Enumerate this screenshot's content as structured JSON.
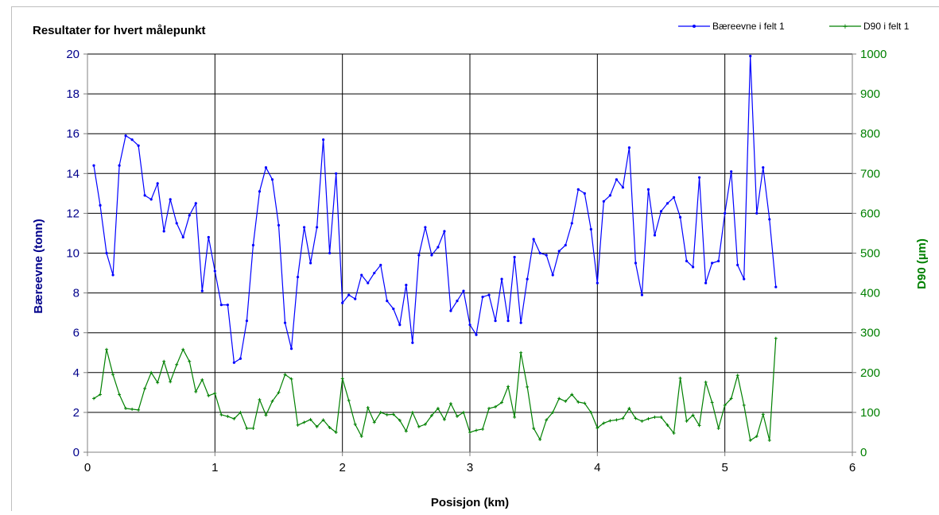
{
  "chart_data": {
    "type": "line",
    "title": "Resultater for hvert målepunkt",
    "xlabel": "Posisjon (km)",
    "ylabel_left": "Bæreevne (tonn)",
    "ylabel_right": "D90 (µm)",
    "xlim": [
      0,
      6
    ],
    "ylim_left": [
      0,
      20
    ],
    "ylim_right": [
      0,
      1000
    ],
    "x_ticks": [
      "0",
      "1",
      "2",
      "3",
      "4",
      "5",
      "6"
    ],
    "y_left_ticks": [
      "0",
      "2",
      "4",
      "6",
      "8",
      "10",
      "12",
      "14",
      "16",
      "18",
      "20"
    ],
    "y_right_ticks": [
      "0",
      "100",
      "200",
      "300",
      "400",
      "500",
      "600",
      "700",
      "800",
      "900",
      "1000"
    ],
    "grid": true,
    "legend_position": "top-right",
    "colors": {
      "series1": "#0000ff",
      "series2": "#008000",
      "left_axis": "#00008b",
      "right_axis": "#008000"
    },
    "series": [
      {
        "name": "Bæreevne i felt 1",
        "axis": "left",
        "x": [
          0.05,
          0.1,
          0.15,
          0.2,
          0.25,
          0.3,
          0.35,
          0.4,
          0.45,
          0.5,
          0.55,
          0.6,
          0.65,
          0.7,
          0.75,
          0.8,
          0.85,
          0.9,
          0.95,
          1.0,
          1.05,
          1.1,
          1.15,
          1.2,
          1.25,
          1.3,
          1.35,
          1.4,
          1.45,
          1.5,
          1.55,
          1.6,
          1.65,
          1.7,
          1.75,
          1.8,
          1.85,
          1.9,
          1.95,
          2.0,
          2.05,
          2.1,
          2.15,
          2.2,
          2.25,
          2.3,
          2.35,
          2.4,
          2.45,
          2.5,
          2.55,
          2.6,
          2.65,
          2.7,
          2.75,
          2.8,
          2.85,
          2.9,
          2.95,
          3.0,
          3.05,
          3.1,
          3.15,
          3.2,
          3.25,
          3.3,
          3.35,
          3.4,
          3.45,
          3.5,
          3.55,
          3.6,
          3.65,
          3.7,
          3.75,
          3.8,
          3.85,
          3.9,
          3.95,
          4.0,
          4.05,
          4.1,
          4.15,
          4.2,
          4.25,
          4.3,
          4.35,
          4.4,
          4.45,
          4.5,
          4.55,
          4.6,
          4.65,
          4.7,
          4.75,
          4.8,
          4.85,
          4.9,
          4.95,
          5.0,
          5.05,
          5.1,
          5.15,
          5.2,
          5.25,
          5.3,
          5.35,
          5.4
        ],
        "values": [
          14.4,
          12.4,
          10.0,
          8.9,
          14.4,
          15.9,
          15.7,
          15.4,
          12.9,
          12.7,
          13.5,
          11.1,
          12.7,
          11.5,
          10.8,
          11.9,
          12.5,
          8.1,
          10.8,
          9.1,
          7.4,
          7.4,
          4.5,
          4.7,
          6.6,
          10.4,
          13.1,
          14.3,
          13.7,
          11.4,
          6.5,
          5.2,
          8.8,
          11.3,
          9.5,
          11.3,
          15.7,
          10.0,
          14.0,
          7.5,
          7.9,
          7.7,
          8.9,
          8.5,
          9.0,
          9.4,
          7.6,
          7.2,
          6.4,
          8.4,
          5.5,
          9.9,
          11.3,
          9.9,
          10.3,
          11.1,
          7.1,
          7.6,
          8.1,
          6.4,
          5.9,
          7.8,
          7.9,
          6.6,
          8.7,
          6.6,
          9.8,
          6.5,
          8.7,
          10.7,
          10.0,
          9.9,
          8.9,
          10.1,
          10.4,
          11.5,
          13.2,
          13.0,
          11.2,
          8.5,
          12.6,
          12.9,
          13.7,
          13.3,
          15.3,
          9.5,
          7.9,
          13.2,
          10.9,
          12.1,
          12.5,
          12.8,
          11.8,
          9.6,
          9.3,
          13.8,
          8.5,
          9.5,
          9.6,
          12.0,
          14.1,
          9.4,
          8.7,
          19.9,
          12.0,
          14.3,
          11.7,
          8.3
        ]
      },
      {
        "name": "D90 i felt 1",
        "axis": "right",
        "x": [
          0.05,
          0.1,
          0.15,
          0.2,
          0.25,
          0.3,
          0.35,
          0.4,
          0.45,
          0.5,
          0.55,
          0.6,
          0.65,
          0.7,
          0.75,
          0.8,
          0.85,
          0.9,
          0.95,
          1.0,
          1.05,
          1.1,
          1.15,
          1.2,
          1.25,
          1.3,
          1.35,
          1.4,
          1.45,
          1.5,
          1.55,
          1.6,
          1.65,
          1.7,
          1.75,
          1.8,
          1.85,
          1.9,
          1.95,
          2.0,
          2.05,
          2.1,
          2.15,
          2.2,
          2.25,
          2.3,
          2.35,
          2.4,
          2.45,
          2.5,
          2.55,
          2.6,
          2.65,
          2.7,
          2.75,
          2.8,
          2.85,
          2.9,
          2.95,
          3.0,
          3.05,
          3.1,
          3.15,
          3.2,
          3.25,
          3.3,
          3.35,
          3.4,
          3.45,
          3.5,
          3.55,
          3.6,
          3.65,
          3.7,
          3.75,
          3.8,
          3.85,
          3.9,
          3.95,
          4.0,
          4.05,
          4.1,
          4.15,
          4.2,
          4.25,
          4.3,
          4.35,
          4.4,
          4.45,
          4.5,
          4.55,
          4.6,
          4.65,
          4.7,
          4.75,
          4.8,
          4.85,
          4.9,
          4.95,
          5.0,
          5.05,
          5.1,
          5.15,
          5.2,
          5.25,
          5.3,
          5.35,
          5.4
        ],
        "values": [
          135,
          145,
          258,
          195,
          145,
          110,
          108,
          106,
          160,
          200,
          175,
          228,
          177,
          220,
          258,
          228,
          152,
          182,
          142,
          148,
          94,
          90,
          84,
          100,
          60,
          60,
          132,
          93,
          128,
          150,
          195,
          184,
          68,
          75,
          82,
          64,
          81,
          62,
          50,
          185,
          130,
          70,
          40,
          112,
          75,
          100,
          94,
          95,
          80,
          53,
          100,
          64,
          70,
          92,
          110,
          82,
          122,
          90,
          100,
          50,
          55,
          58,
          110,
          114,
          125,
          165,
          88,
          250,
          164,
          60,
          32,
          81,
          100,
          135,
          128,
          145,
          126,
          123,
          100,
          61,
          73,
          79,
          81,
          85,
          110,
          85,
          78,
          84,
          88,
          88,
          68,
          48,
          186,
          78,
          93,
          67,
          176,
          125,
          60,
          118,
          135,
          193,
          118,
          30,
          40,
          95,
          30,
          286
        ]
      }
    ]
  }
}
